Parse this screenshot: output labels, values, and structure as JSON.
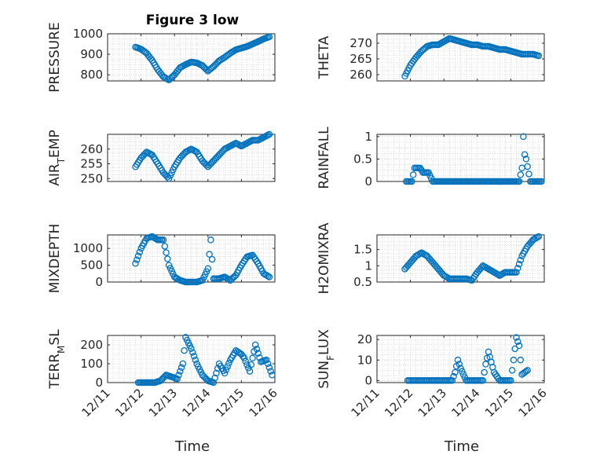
{
  "figure": {
    "title": "Figure 3 low",
    "xlabel": "Time"
  },
  "colors": {
    "marker": "#0072BD",
    "axis": "#262626",
    "grid": "#8c8c8c"
  },
  "xaxis": {
    "range": [
      "12/11",
      "12/16"
    ],
    "ticks": [
      "12/11",
      "12/12",
      "12/13",
      "12/14",
      "12/15",
      "12/16"
    ]
  },
  "chart_data": [
    {
      "type": "scatter",
      "ylabel": "PRESSURE",
      "ylim": [
        770,
        1000
      ],
      "yticks": [
        800,
        900,
        1000
      ],
      "x": [
        "12/11 20:00",
        "12/12 00:00",
        "12/12 04:00",
        "12/12 08:00",
        "12/12 12:00",
        "12/12 16:00",
        "12/12 20:00",
        "12/13 00:00",
        "12/13 04:00",
        "12/13 08:00",
        "12/13 12:00",
        "12/13 16:00",
        "12/13 20:00",
        "12/14 00:00",
        "12/14 04:00",
        "12/14 08:00",
        "12/14 12:00",
        "12/14 16:00",
        "12/14 20:00",
        "12/15 00:00",
        "12/15 04:00",
        "12/15 08:00",
        "12/15 12:00",
        "12/15 16:00",
        "12/15 20:00"
      ],
      "y": [
        935,
        925,
        905,
        870,
        825,
        790,
        775,
        800,
        835,
        850,
        862,
        858,
        845,
        818,
        840,
        868,
        885,
        905,
        922,
        930,
        938,
        950,
        962,
        975,
        985
      ]
    },
    {
      "type": "scatter",
      "ylabel": "THETA",
      "ylim": [
        258,
        273
      ],
      "yticks": [
        260,
        265,
        270
      ],
      "x": [
        "12/11 20:00",
        "12/12 00:00",
        "12/12 04:00",
        "12/12 08:00",
        "12/12 12:00",
        "12/12 16:00",
        "12/12 20:00",
        "12/13 00:00",
        "12/13 04:00",
        "12/13 08:00",
        "12/13 12:00",
        "12/13 16:00",
        "12/13 20:00",
        "12/14 00:00",
        "12/14 04:00",
        "12/14 08:00",
        "12/14 12:00",
        "12/14 16:00",
        "12/14 20:00",
        "12/15 00:00",
        "12/15 04:00",
        "12/15 08:00",
        "12/15 12:00",
        "12/15 16:00",
        "12/15 20:00"
      ],
      "y": [
        259.5,
        263,
        265.5,
        267.5,
        269,
        269.5,
        269.5,
        270.5,
        271.5,
        271,
        270.5,
        270,
        269.5,
        269.5,
        269,
        269,
        268.5,
        268,
        268,
        267.5,
        267,
        266.5,
        266.5,
        266.5,
        266
      ]
    },
    {
      "type": "scatter",
      "ylabel": "AIR_TEMP",
      "ylim": [
        249,
        265
      ],
      "yticks": [
        250,
        255,
        260
      ],
      "x": [
        "12/11 20:00",
        "12/12 00:00",
        "12/12 04:00",
        "12/12 08:00",
        "12/12 12:00",
        "12/12 16:00",
        "12/12 20:00",
        "12/13 00:00",
        "12/13 04:00",
        "12/13 08:00",
        "12/13 12:00",
        "12/13 16:00",
        "12/13 20:00",
        "12/14 00:00",
        "12/14 04:00",
        "12/14 08:00",
        "12/14 12:00",
        "12/14 16:00",
        "12/14 20:00",
        "12/15 00:00",
        "12/15 04:00",
        "12/15 08:00",
        "12/15 12:00",
        "12/15 16:00",
        "12/15 20:00"
      ],
      "y": [
        254,
        257,
        259,
        258,
        255,
        252,
        250,
        254,
        257,
        259,
        260,
        259,
        256,
        254,
        256,
        258,
        260,
        261,
        262,
        261,
        262,
        263,
        263,
        264,
        265
      ]
    },
    {
      "type": "scatter",
      "ylabel": "RAINFALL",
      "ylim": [
        0,
        1.05
      ],
      "yticks": [
        0,
        0.5,
        1
      ],
      "x": [
        "12/11 21:00",
        "12/11 23:00",
        "12/12 01:00",
        "12/12 03:00",
        "12/12 05:00",
        "12/12 07:00",
        "12/12 09:00",
        "12/12 11:00",
        "12/12 13:00",
        "12/12 16:00",
        "12/12 20:00",
        "12/13 00:00",
        "12/13 06:00",
        "12/13 12:00",
        "12/13 18:00",
        "12/14 00:00",
        "12/14 06:00",
        "12/14 12:00",
        "12/14 18:00",
        "12/15 00:00",
        "12/15 06:00",
        "12/15 08:00",
        "12/15 09:00",
        "12/15 10:00",
        "12/15 11:00",
        "12/15 14:00",
        "12/15 18:00",
        "12/15 22:00"
      ],
      "y": [
        0,
        0,
        0,
        0.3,
        0.3,
        0.3,
        0.2,
        0.2,
        0.2,
        0,
        0,
        0,
        0,
        0,
        0,
        0,
        0,
        0,
        0,
        0,
        0,
        0.3,
        1.0,
        0.6,
        0.5,
        0,
        0,
        0
      ]
    },
    {
      "type": "scatter",
      "ylabel": "MIXDEPTH",
      "ylim": [
        0,
        1400
      ],
      "yticks": [
        0,
        500,
        1000
      ],
      "x": [
        "12/11 20:00",
        "12/12 00:00",
        "12/12 04:00",
        "12/12 08:00",
        "12/12 12:00",
        "12/12 16:00",
        "12/12 20:00",
        "12/13 00:00",
        "12/13 04:00",
        "12/13 08:00",
        "12/13 12:00",
        "12/13 16:00",
        "12/13 20:00",
        "12/14 00:00",
        "12/14 02:00",
        "12/14 04:00",
        "12/14 08:00",
        "12/14 12:00",
        "12/14 16:00",
        "12/14 20:00",
        "12/15 00:00",
        "12/15 04:00",
        "12/15 08:00",
        "12/15 12:00",
        "12/15 16:00",
        "12/15 20:00"
      ],
      "y": [
        550,
        1000,
        1300,
        1350,
        1250,
        1250,
        500,
        150,
        50,
        0,
        0,
        0,
        50,
        400,
        1250,
        100,
        100,
        150,
        50,
        200,
        500,
        750,
        800,
        550,
        250,
        150
      ]
    },
    {
      "type": "scatter",
      "ylabel": "H2OMIXRA",
      "ylim": [
        0.5,
        1.95
      ],
      "yticks": [
        0.5,
        1,
        1.5
      ],
      "x": [
        "12/11 20:00",
        "12/12 00:00",
        "12/12 04:00",
        "12/12 08:00",
        "12/12 12:00",
        "12/12 16:00",
        "12/12 20:00",
        "12/13 00:00",
        "12/13 04:00",
        "12/13 08:00",
        "12/13 12:00",
        "12/13 16:00",
        "12/13 20:00",
        "12/14 00:00",
        "12/14 04:00",
        "12/14 08:00",
        "12/14 12:00",
        "12/14 16:00",
        "12/14 20:00",
        "12/15 00:00",
        "12/15 04:00",
        "12/15 08:00",
        "12/15 12:00",
        "12/15 16:00",
        "12/15 20:00"
      ],
      "y": [
        0.9,
        1.1,
        1.3,
        1.4,
        1.3,
        1.1,
        0.9,
        0.7,
        0.6,
        0.6,
        0.6,
        0.6,
        0.55,
        0.8,
        1.0,
        0.9,
        0.8,
        0.7,
        0.8,
        0.8,
        0.8,
        1.3,
        1.6,
        1.8,
        1.9
      ]
    },
    {
      "type": "scatter",
      "ylabel": "TERR_MSL",
      "ylim": [
        0,
        250
      ],
      "yticks": [
        0,
        100,
        200
      ],
      "x": [
        "12/11 22:00",
        "12/12 02:00",
        "12/12 06:00",
        "12/12 10:00",
        "12/12 14:00",
        "12/12 18:00",
        "12/12 22:00",
        "12/13 02:00",
        "12/13 06:00",
        "12/13 08:00",
        "12/13 12:00",
        "12/13 16:00",
        "12/13 20:00",
        "12/14 00:00",
        "12/14 04:00",
        "12/14 08:00",
        "12/14 12:00",
        "12/14 16:00",
        "12/14 20:00",
        "12/15 00:00",
        "12/15 02:00",
        "12/15 06:00",
        "12/15 10:00",
        "12/15 14:00",
        "12/15 18:00",
        "12/15 22:00"
      ],
      "y": [
        0,
        0,
        0,
        0,
        10,
        40,
        30,
        20,
        100,
        240,
        180,
        100,
        40,
        10,
        0,
        100,
        50,
        120,
        170,
        150,
        130,
        60,
        200,
        110,
        120,
        40
      ]
    },
    {
      "type": "scatter",
      "ylabel": "SUN_FLUX",
      "ylim": [
        -1,
        22
      ],
      "yticks": [
        0,
        10,
        20
      ],
      "x": [
        "12/11 22:00",
        "12/12 02:00",
        "12/12 06:00",
        "12/12 10:00",
        "12/12 14:00",
        "12/12 18:00",
        "12/12 22:00",
        "12/13 02:00",
        "12/13 06:00",
        "12/13 08:00",
        "12/13 10:00",
        "12/13 12:00",
        "12/13 16:00",
        "12/13 20:00",
        "12/14 00:00",
        "12/14 04:00",
        "12/14 06:00",
        "12/14 08:00",
        "12/14 12:00",
        "12/14 16:00",
        "12/14 20:00",
        "12/15 00:00",
        "12/15 02:00",
        "12/15 04:00",
        "12/15 06:00",
        "12/15 08:00",
        "12/15 12:00"
      ],
      "y": [
        0,
        0,
        0,
        0,
        0,
        0,
        0,
        0,
        0,
        4,
        10,
        6,
        0,
        0,
        0,
        0,
        8,
        14,
        4,
        0,
        0,
        0,
        10,
        21,
        17,
        3,
        5
      ]
    }
  ]
}
